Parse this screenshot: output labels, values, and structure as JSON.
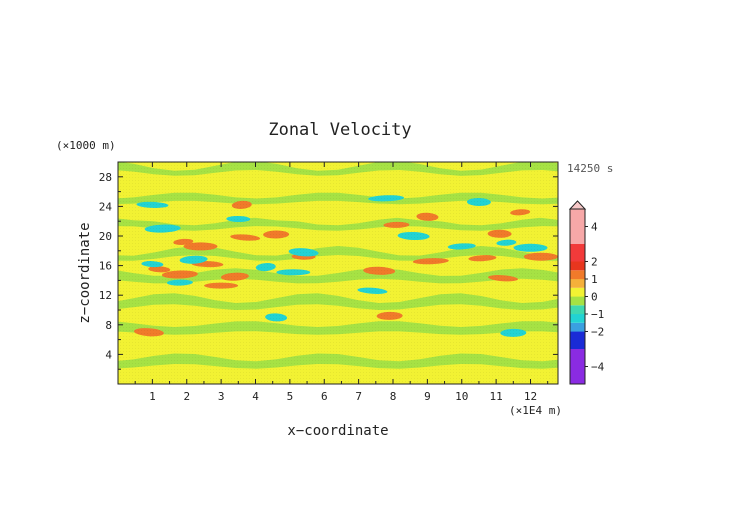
{
  "chart_data": {
    "type": "heatmap",
    "title": "Zonal Velocity",
    "xlabel": "x−coordinate",
    "ylabel": "z−coordinate",
    "x_unit": "(×1E4 m)",
    "y_unit": "(×1000 m)",
    "time_label": "14250 s",
    "xlim": [
      0,
      12.8
    ],
    "ylim": [
      0,
      30
    ],
    "x_ticks": [
      1,
      2,
      3,
      4,
      5,
      6,
      7,
      8,
      9,
      10,
      11,
      12
    ],
    "y_ticks": [
      4,
      8,
      12,
      16,
      20,
      24,
      28
    ],
    "colorbar": {
      "range": [
        -5,
        5
      ],
      "tick_values": [
        4,
        2,
        1,
        0,
        -1,
        -2,
        -4
      ],
      "tick_labels": [
        "4",
        "2",
        "1",
        "0",
        "−1",
        "−2",
        "−4"
      ],
      "levels": [
        {
          "from": -5,
          "to": -3,
          "color": "#8a2be2"
        },
        {
          "from": -3,
          "to": -2,
          "color": "#1a2bd6"
        },
        {
          "from": -2,
          "to": -1.5,
          "color": "#3aa0e0"
        },
        {
          "from": -1.5,
          "to": -1,
          "color": "#22d3d3"
        },
        {
          "from": -1,
          "to": -0.5,
          "color": "#3fd9b0"
        },
        {
          "from": -0.5,
          "to": 0,
          "color": "#a6e244"
        },
        {
          "from": 0,
          "to": 0.5,
          "color": "#f2f233"
        },
        {
          "from": 0.5,
          "to": 1,
          "color": "#f5b03a"
        },
        {
          "from": 1,
          "to": 1.5,
          "color": "#f07a2a"
        },
        {
          "from": 1.5,
          "to": 2,
          "color": "#e8361e"
        },
        {
          "from": 2,
          "to": 3,
          "color": "#f23a3a"
        },
        {
          "from": 3,
          "to": 5,
          "color": "#f7a8a8"
        }
      ],
      "extend": "max"
    },
    "field": {
      "background_value": 0.25,
      "bands": [
        {
          "z": 1,
          "value": 0.25
        },
        {
          "z": 3,
          "value": -0.25
        },
        {
          "z": 5.5,
          "value": 0.25
        },
        {
          "z": 7.5,
          "value": -0.25
        },
        {
          "z": 9.5,
          "value": 0.25
        },
        {
          "z": 11,
          "value": -0.25
        },
        {
          "z": 13,
          "value": 0.25
        },
        {
          "z": 14.5,
          "value": -0.25
        },
        {
          "z": 17.5,
          "value": -0.25
        },
        {
          "z": 19.5,
          "value": 0.25
        },
        {
          "z": 21.5,
          "value": -0.25
        },
        {
          "z": 23,
          "value": 0.25
        },
        {
          "z": 25,
          "value": -0.25
        },
        {
          "z": 27,
          "value": 0.25
        },
        {
          "z": 29,
          "value": -0.25
        }
      ],
      "features": [
        {
          "x": 1.9,
          "z": 19.2,
          "value": 1.2
        },
        {
          "x": 2.4,
          "z": 18.6,
          "value": 1.2
        },
        {
          "x": 3.7,
          "z": 19.8,
          "value": 1.2
        },
        {
          "x": 4.6,
          "z": 20.2,
          "value": 1.2
        },
        {
          "x": 1.2,
          "z": 15.5,
          "value": 1.2
        },
        {
          "x": 1.8,
          "z": 14.8,
          "value": 1.2
        },
        {
          "x": 2.6,
          "z": 16.2,
          "value": 1.2
        },
        {
          "x": 3.4,
          "z": 14.5,
          "value": 1.2
        },
        {
          "x": 5.4,
          "z": 17.2,
          "value": 1.2
        },
        {
          "x": 3.6,
          "z": 24.2,
          "value": 1.2
        },
        {
          "x": 3.0,
          "z": 13.3,
          "value": 1.2
        },
        {
          "x": 0.9,
          "z": 7.0,
          "value": 1.2
        },
        {
          "x": 8.1,
          "z": 21.5,
          "value": 1.2
        },
        {
          "x": 9.0,
          "z": 22.6,
          "value": 1.2
        },
        {
          "x": 9.1,
          "z": 16.6,
          "value": 1.2
        },
        {
          "x": 7.6,
          "z": 15.3,
          "value": 1.2
        },
        {
          "x": 10.6,
          "z": 17.0,
          "value": 1.2
        },
        {
          "x": 11.1,
          "z": 20.3,
          "value": 1.2
        },
        {
          "x": 11.7,
          "z": 23.2,
          "value": 1.2
        },
        {
          "x": 12.3,
          "z": 17.2,
          "value": 1.2
        },
        {
          "x": 11.2,
          "z": 14.3,
          "value": 1.2
        },
        {
          "x": 7.9,
          "z": 9.2,
          "value": 1.2
        },
        {
          "x": 1.0,
          "z": 16.2,
          "value": -1.2
        },
        {
          "x": 1.3,
          "z": 21.0,
          "value": -1.2
        },
        {
          "x": 1.0,
          "z": 24.2,
          "value": -1.2
        },
        {
          "x": 2.2,
          "z": 16.8,
          "value": -1.2
        },
        {
          "x": 3.5,
          "z": 22.3,
          "value": -1.2
        },
        {
          "x": 4.3,
          "z": 15.8,
          "value": -1.2
        },
        {
          "x": 5.1,
          "z": 15.1,
          "value": -1.2
        },
        {
          "x": 5.4,
          "z": 17.8,
          "value": -1.2
        },
        {
          "x": 1.8,
          "z": 13.7,
          "value": -1.2
        },
        {
          "x": 4.6,
          "z": 9.0,
          "value": -1.2
        },
        {
          "x": 7.8,
          "z": 25.1,
          "value": -1.2
        },
        {
          "x": 8.6,
          "z": 20.0,
          "value": -1.2
        },
        {
          "x": 10.0,
          "z": 18.6,
          "value": -1.2
        },
        {
          "x": 10.5,
          "z": 24.6,
          "value": -1.2
        },
        {
          "x": 11.3,
          "z": 19.1,
          "value": -1.2
        },
        {
          "x": 12.0,
          "z": 18.4,
          "value": -1.2
        },
        {
          "x": 7.4,
          "z": 12.6,
          "value": -1.2
        },
        {
          "x": 11.5,
          "z": 6.9,
          "value": -1.2
        }
      ]
    }
  }
}
